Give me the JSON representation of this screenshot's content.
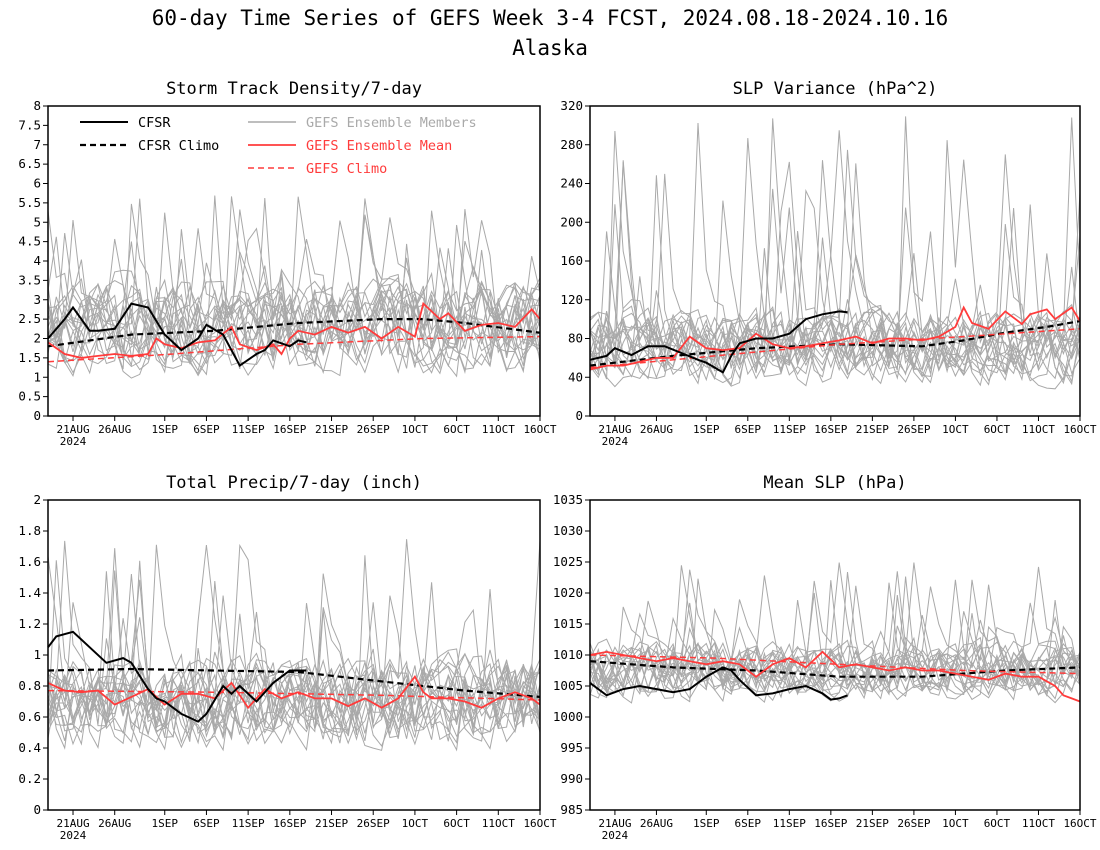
{
  "figure": {
    "title": "60-day Time Series of GEFS Week 3-4 FCST, 2024.08.18-2024.10.16",
    "subtitle": "Alaska"
  },
  "legend": {
    "cfsr": "CFSR",
    "cfsr_climo": "CFSR Climo",
    "gefs_members": "GEFS Ensemble Members",
    "gefs_mean": "GEFS Ensemble Mean",
    "gefs_climo": "GEFS Climo"
  },
  "colors": {
    "cfsr": "#000000",
    "members": "#a9a9a9",
    "gefs": "#ff3b3b",
    "legend_members_text": "#a9a9a9",
    "legend_gefs_text": "#ff3b3b"
  },
  "x_axis": {
    "tick_labels": [
      "21AUG",
      "26AUG",
      "1SEP",
      "6SEP",
      "11SEP",
      "16SEP",
      "21SEP",
      "26SEP",
      "1OCT",
      "6OCT",
      "11OCT",
      "16OCT"
    ],
    "tick_days": [
      3,
      8,
      14,
      19,
      24,
      29,
      34,
      39,
      44,
      49,
      54,
      59
    ],
    "year_label": "2024",
    "day_range": [
      0,
      59
    ]
  },
  "chart_data": [
    {
      "type": "line",
      "title": "Storm Track Density/7-day",
      "ylim": [
        0,
        8
      ],
      "yticks": [
        "0",
        "0.5",
        "1",
        "1.5",
        "2",
        "2.5",
        "3",
        "3.5",
        "4",
        "4.5",
        "5",
        "5.5",
        "6",
        "6.5",
        "7",
        "7.5",
        "8"
      ],
      "grid": false,
      "legend_position": "top-left",
      "members_band": {
        "count": 20,
        "center": 2.3,
        "spread": 0.9,
        "low": 0.05,
        "high": 5.7
      },
      "series": [
        {
          "key": "members",
          "x": [],
          "y": []
        },
        {
          "key": "cfsr",
          "x": [
            0,
            2,
            3,
            5,
            6,
            8,
            10,
            12,
            14,
            15,
            16,
            18,
            19,
            21,
            23,
            25,
            26,
            27,
            29,
            30,
            31
          ],
          "y": [
            2.0,
            2.5,
            2.8,
            2.2,
            2.2,
            2.25,
            2.9,
            2.8,
            2.1,
            1.9,
            1.7,
            2.0,
            2.35,
            2.1,
            1.3,
            1.6,
            1.7,
            1.95,
            1.8,
            1.95,
            1.9
          ]
        },
        {
          "key": "cfsr_climo",
          "x": [
            0,
            10,
            20,
            30,
            40,
            45,
            50,
            59
          ],
          "y": [
            1.8,
            2.1,
            2.2,
            2.4,
            2.5,
            2.5,
            2.4,
            2.15
          ]
        },
        {
          "key": "gefs_mean",
          "x": [
            0,
            2,
            4,
            6,
            8,
            10,
            12,
            13,
            14,
            16,
            18,
            20,
            22,
            23,
            25,
            27,
            28,
            29,
            30,
            32,
            34,
            36,
            38,
            40,
            42,
            44,
            45,
            47,
            48,
            50,
            52,
            54,
            56,
            58,
            59
          ],
          "y": [
            1.9,
            1.6,
            1.5,
            1.55,
            1.6,
            1.55,
            1.6,
            2.0,
            1.85,
            1.75,
            1.9,
            1.95,
            2.3,
            1.85,
            1.7,
            1.85,
            1.6,
            2.0,
            2.2,
            2.1,
            2.3,
            2.15,
            2.3,
            2.0,
            2.3,
            2.05,
            2.9,
            2.5,
            2.65,
            2.2,
            2.35,
            2.4,
            2.3,
            2.75,
            2.5
          ]
        },
        {
          "key": "gefs_climo",
          "x": [
            0,
            15,
            30,
            45,
            59
          ],
          "y": [
            1.4,
            1.6,
            1.85,
            2.0,
            2.05
          ]
        }
      ]
    },
    {
      "type": "line",
      "title": "SLP Variance (hPa^2)",
      "ylim": [
        0,
        320
      ],
      "yticks": [
        "0",
        "40",
        "80",
        "120",
        "160",
        "200",
        "240",
        "280",
        "320"
      ],
      "grid": false,
      "members_band": {
        "count": 20,
        "center": 72,
        "spread": 28,
        "low": 18,
        "high": 310
      },
      "series": [
        {
          "key": "members",
          "x": [],
          "y": []
        },
        {
          "key": "cfsr",
          "x": [
            0,
            2,
            3,
            5,
            7,
            9,
            11,
            13,
            14,
            16,
            17,
            18,
            20,
            22,
            24,
            26,
            28,
            30,
            31
          ],
          "y": [
            58,
            62,
            70,
            63,
            72,
            72,
            65,
            58,
            55,
            45,
            62,
            75,
            80,
            80,
            85,
            100,
            105,
            108,
            107
          ]
        },
        {
          "key": "cfsr_climo",
          "x": [
            0,
            10,
            20,
            30,
            40,
            45,
            50,
            55,
            59
          ],
          "y": [
            52,
            62,
            70,
            74,
            72,
            78,
            86,
            92,
            98
          ]
        },
        {
          "key": "gefs_mean",
          "x": [
            0,
            2,
            4,
            6,
            8,
            10,
            12,
            14,
            16,
            18,
            20,
            22,
            24,
            26,
            28,
            30,
            32,
            34,
            36,
            38,
            40,
            42,
            44,
            45,
            46,
            48,
            50,
            52,
            53,
            55,
            56,
            58,
            59
          ],
          "y": [
            48,
            52,
            52,
            56,
            60,
            60,
            82,
            70,
            68,
            70,
            85,
            74,
            70,
            72,
            75,
            78,
            82,
            75,
            80,
            80,
            78,
            82,
            92,
            112,
            96,
            90,
            108,
            95,
            105,
            110,
            100,
            112,
            98
          ]
        },
        {
          "key": "gefs_climo",
          "x": [
            0,
            15,
            30,
            45,
            59
          ],
          "y": [
            50,
            62,
            74,
            82,
            90
          ]
        }
      ]
    },
    {
      "type": "line",
      "title": "Total Precip/7-day (inch)",
      "ylim": [
        0,
        2
      ],
      "yticks": [
        "0",
        "0.2",
        "0.4",
        "0.6",
        "0.8",
        "1",
        "1.2",
        "1.4",
        "1.6",
        "1.8",
        "2"
      ],
      "grid": false,
      "members_band": {
        "count": 20,
        "center": 0.7,
        "spread": 0.22,
        "low": 0.15,
        "high": 1.78
      },
      "series": [
        {
          "key": "members",
          "x": [],
          "y": []
        },
        {
          "key": "cfsr",
          "x": [
            0,
            1,
            3,
            5,
            7,
            9,
            10,
            12,
            13,
            14,
            16,
            18,
            19,
            21,
            22,
            23,
            25,
            27,
            29,
            30,
            31
          ],
          "y": [
            1.05,
            1.12,
            1.15,
            1.05,
            0.95,
            0.98,
            0.95,
            0.78,
            0.72,
            0.7,
            0.62,
            0.57,
            0.62,
            0.8,
            0.75,
            0.8,
            0.7,
            0.82,
            0.9,
            0.9,
            0.9
          ]
        },
        {
          "key": "cfsr_climo",
          "x": [
            0,
            10,
            20,
            30,
            40,
            50,
            59
          ],
          "y": [
            0.9,
            0.91,
            0.9,
            0.89,
            0.83,
            0.77,
            0.73
          ]
        },
        {
          "key": "gefs_mean",
          "x": [
            0,
            2,
            4,
            6,
            8,
            10,
            12,
            14,
            16,
            18,
            20,
            22,
            24,
            26,
            28,
            30,
            32,
            34,
            36,
            38,
            40,
            42,
            44,
            45,
            46,
            48,
            50,
            52,
            54,
            56,
            58,
            59
          ],
          "y": [
            0.82,
            0.77,
            0.76,
            0.77,
            0.68,
            0.73,
            0.78,
            0.68,
            0.75,
            0.75,
            0.72,
            0.82,
            0.66,
            0.78,
            0.72,
            0.76,
            0.72,
            0.72,
            0.67,
            0.72,
            0.66,
            0.72,
            0.86,
            0.76,
            0.72,
            0.72,
            0.7,
            0.66,
            0.72,
            0.76,
            0.72,
            0.68
          ]
        },
        {
          "key": "gefs_climo",
          "x": [
            0,
            20,
            40,
            59
          ],
          "y": [
            0.77,
            0.76,
            0.74,
            0.71
          ]
        }
      ]
    },
    {
      "type": "line",
      "title": "Mean SLP (hPa)",
      "ylim": [
        985,
        1035
      ],
      "yticks": [
        "985",
        "990",
        "995",
        "1000",
        "1005",
        "1010",
        "1015",
        "1020",
        "1025",
        "1030",
        "1035"
      ],
      "grid": false,
      "members_band": {
        "count": 20,
        "center": 1007.5,
        "spread": 3.5,
        "low": 992,
        "high": 1025
      },
      "series": [
        {
          "key": "members",
          "x": [],
          "y": []
        },
        {
          "key": "cfsr",
          "x": [
            0,
            2,
            4,
            6,
            8,
            10,
            12,
            14,
            16,
            17,
            18,
            20,
            22,
            24,
            26,
            28,
            29,
            30,
            31
          ],
          "y": [
            1005.5,
            1003.5,
            1004.5,
            1005.0,
            1004.5,
            1004.0,
            1004.5,
            1006.5,
            1008.0,
            1007.5,
            1006.0,
            1003.5,
            1003.8,
            1004.5,
            1005.0,
            1003.8,
            1002.8,
            1003.0,
            1003.5
          ]
        },
        {
          "key": "cfsr_climo",
          "x": [
            0,
            10,
            20,
            30,
            40,
            50,
            59
          ],
          "y": [
            1009,
            1008,
            1007.5,
            1006.5,
            1006.5,
            1007.5,
            1008
          ]
        },
        {
          "key": "gefs_mean",
          "x": [
            0,
            2,
            4,
            6,
            8,
            10,
            12,
            14,
            16,
            18,
            20,
            22,
            24,
            26,
            28,
            30,
            32,
            34,
            36,
            38,
            40,
            42,
            44,
            46,
            48,
            50,
            52,
            54,
            56,
            57,
            58,
            59
          ],
          "y": [
            1010,
            1010.5,
            1010,
            1009.5,
            1009,
            1009.5,
            1009,
            1008.5,
            1009,
            1008.5,
            1006.5,
            1008.5,
            1009.5,
            1008,
            1010.5,
            1008,
            1008.5,
            1008,
            1007.5,
            1008,
            1007.5,
            1007.5,
            1007,
            1006.5,
            1006,
            1007,
            1006.5,
            1006.5,
            1005,
            1003.5,
            1003,
            1002.5
          ]
        },
        {
          "key": "gefs_climo",
          "x": [
            0,
            15,
            30,
            45,
            59
          ],
          "y": [
            1010,
            1009.5,
            1008.5,
            1007.5,
            1007
          ]
        }
      ]
    }
  ]
}
